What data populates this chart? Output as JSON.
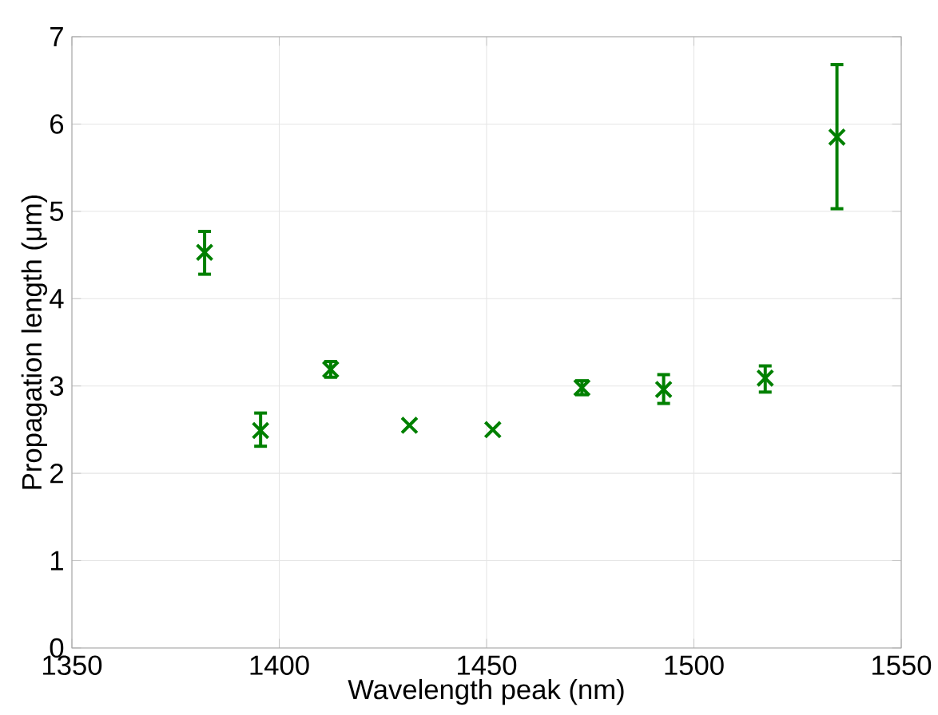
{
  "chart_data": {
    "type": "scatter",
    "xlabel": "Wavelength peak (nm)",
    "ylabel": "Propagation length (μm)",
    "x": [
      1382,
      1395.5,
      1412.4,
      1431.4,
      1451.5,
      1473,
      1492.7,
      1517.2,
      1534.5
    ],
    "series": [
      {
        "color": "#008000",
        "values": [
          4.53,
          2.49,
          3.19,
          2.55,
          2.5,
          2.98,
          2.96,
          3.09,
          5.85
        ],
        "errors": [
          [
            4.28,
            4.77
          ],
          [
            2.31,
            2.69
          ],
          [
            3.1,
            3.28
          ],
          null,
          null,
          [
            2.9,
            3.06
          ],
          [
            2.8,
            3.13
          ],
          [
            2.93,
            3.23
          ],
          [
            5.03,
            6.68
          ]
        ]
      }
    ],
    "xlim": [
      1350,
      1550
    ],
    "ylim": [
      0,
      7
    ],
    "xticks": [
      1350,
      1400,
      1450,
      1500,
      1550
    ],
    "yticks": [
      0,
      1,
      2,
      3,
      4,
      5,
      6,
      7
    ],
    "grid": true,
    "marker": "cross"
  }
}
